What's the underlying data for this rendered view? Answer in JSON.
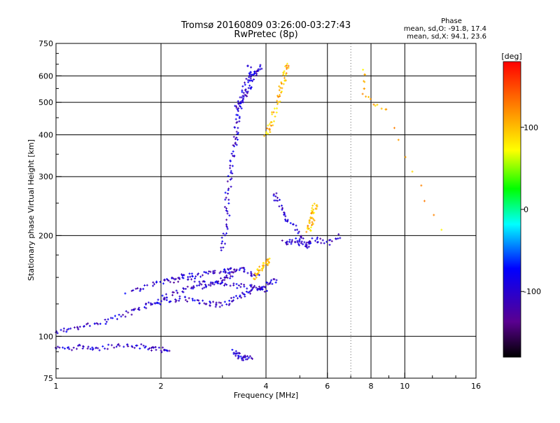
{
  "chart_data": {
    "type": "scatter",
    "title": "Tromsø 20160809 03:26:00-03:27:43",
    "subtitle": "RwPretec (8p)",
    "xlabel": "Frequency [MHz]",
    "ylabel": "Stationary phase Virtual Height [km]",
    "x_scale": "log",
    "y_scale": "log",
    "xlim": [
      1,
      16
    ],
    "ylim": [
      75,
      750
    ],
    "x_ticks": [
      "1",
      "2",
      "4",
      "6",
      "8",
      "10",
      "16"
    ],
    "x_grid": [
      2,
      4,
      6,
      8,
      10
    ],
    "x_minor_grid": [
      7
    ],
    "y_ticks": [
      "75",
      "100",
      "200",
      "300",
      "400",
      "500",
      "600",
      "750"
    ],
    "y_grid": [
      100,
      200,
      300,
      400,
      500,
      600
    ],
    "grid": true,
    "phase_info": {
      "heading": "Phase",
      "line_o": "mean, sd,O: -91.8, 17.4",
      "line_x": "mean, sd,X:  94.1, 23.6"
    },
    "colorbar": {
      "unit": "[deg]",
      "range": [
        -180,
        180
      ],
      "ticks": [
        "100",
        "0",
        "-100"
      ],
      "tick_values": [
        100,
        0,
        -100
      ],
      "colormap": [
        "#000000",
        "#5a0090",
        "#0000ff",
        "#00ffff",
        "#00ff00",
        "#ffff00",
        "#ff8000",
        "#ff0000"
      ]
    },
    "series": [
      {
        "mode": "O",
        "phase_deg": -100,
        "traces": [
          {
            "x": [
              1.0,
              1.1,
              1.2,
              1.35,
              1.5,
              1.65,
              1.8,
              1.95,
              2.1,
              2.3,
              2.5,
              2.7,
              2.9,
              3.05,
              3.15,
              3.2
            ],
            "y": [
              103,
              105,
              107,
              110,
              114,
              118,
              122,
              128,
              133,
              137,
              140,
              142,
              145,
              148,
              152,
              158
            ]
          },
          {
            "x": [
              1.0,
              1.1,
              1.2,
              1.3,
              1.45,
              1.6,
              1.75,
              1.9,
              2.0,
              2.1
            ],
            "y": [
              92,
              92,
              93,
              92,
              93,
              94,
              93,
              92,
              91,
              92
            ]
          },
          {
            "x": [
              1.6,
              1.8,
              2.0,
              2.2,
              2.4,
              2.6,
              2.8,
              3.0,
              3.2,
              3.4,
              3.6,
              3.8
            ],
            "y": [
              135,
              140,
              145,
              150,
              152,
              153,
              155,
              156,
              158,
              160,
              155,
              150
            ]
          },
          {
            "x": [
              1.9,
              2.1,
              2.3,
              2.5,
              2.7,
              2.9,
              3.1,
              3.3,
              3.5,
              3.7,
              3.9,
              4.1,
              4.3
            ],
            "y": [
              125,
              128,
              130,
              128,
              126,
              124,
              126,
              130,
              135,
              138,
              140,
              143,
              147
            ]
          },
          {
            "x": [
              2.0,
              2.3,
              2.6,
              2.9,
              3.2,
              3.5,
              3.8,
              4.0
            ],
            "y": [
              145,
              148,
              146,
              144,
              142,
              141,
              140,
              138
            ]
          },
          {
            "x": [
              3.0,
              3.05,
              3.1,
              3.1,
              3.15,
              3.2,
              3.25,
              3.3,
              3.3,
              3.35,
              3.4,
              3.5,
              3.6,
              3.6
            ],
            "y": [
              180,
              200,
              230,
              260,
              300,
              330,
              370,
              400,
              440,
              480,
              520,
              560,
              600,
              640
            ]
          },
          {
            "x": [
              3.3,
              3.4,
              3.5,
              3.6,
              3.7,
              3.8,
              3.9
            ],
            "y": [
              480,
              500,
              520,
              560,
              600,
              620,
              640
            ]
          },
          {
            "x": [
              4.2,
              4.35,
              4.5,
              4.7,
              5.0,
              5.3,
              5.6,
              6.0,
              6.5
            ],
            "y": [
              265,
              250,
              230,
              220,
              200,
              190,
              195,
              190,
              200
            ]
          },
          {
            "x": [
              4.5,
              4.7,
              4.9,
              5.1,
              5.3
            ],
            "y": [
              190,
              192,
              195,
              188,
              186
            ]
          },
          {
            "x": [
              3.25,
              3.3,
              3.4,
              3.5,
              3.6
            ],
            "y": [
              90,
              88,
              87,
              86,
              87
            ]
          }
        ]
      },
      {
        "mode": "X",
        "phase_deg": 100,
        "traces": [
          {
            "x": [
              4.0,
              4.1,
              4.2,
              4.3,
              4.4,
              4.5,
              4.55,
              4.6
            ],
            "y": [
              400,
              420,
              450,
              500,
              540,
              580,
              620,
              650
            ]
          },
          {
            "x": [
              5.3,
              5.35,
              5.4,
              5.45,
              5.5,
              5.55
            ],
            "y": [
              205,
              212,
              220,
              230,
              240,
              250
            ]
          },
          {
            "x": [
              3.7,
              3.8,
              3.9,
              4.0,
              4.1
            ],
            "y": [
              150,
              155,
              160,
              165,
              170
            ]
          },
          {
            "x": [
              7.6,
              7.7,
              8.9,
              12.6
            ],
            "y": [
              628,
              520,
              470,
              210
            ]
          }
        ]
      }
    ]
  }
}
